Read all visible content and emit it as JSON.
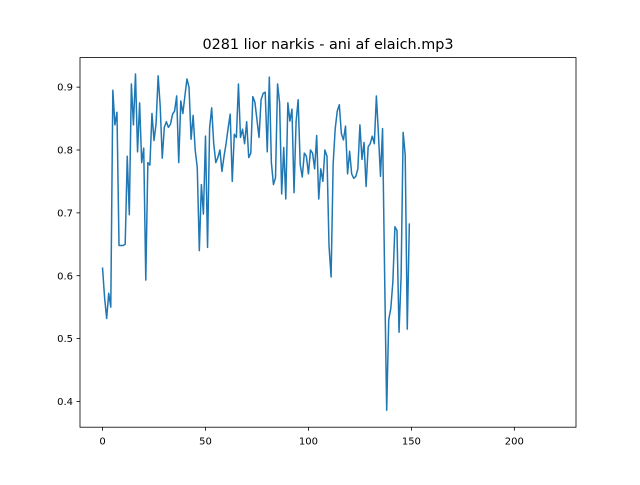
{
  "chart_data": {
    "type": "line",
    "title": "0281 lior narkis - ani af elaich.mp3",
    "xlabel": "",
    "ylabel": "",
    "xlim": [
      -10.95,
      229.95
    ],
    "ylim": [
      0.359,
      0.947
    ],
    "xticks": [
      0,
      50,
      100,
      150,
      200
    ],
    "yticks": [
      0.4,
      0.5,
      0.6,
      0.7,
      0.8,
      0.9
    ],
    "ytick_labels": [
      "0.4",
      "0.5",
      "0.6",
      "0.7",
      "0.8",
      "0.9"
    ],
    "grid": false,
    "legend": false,
    "series": [
      {
        "color": "#1f77b4",
        "x_start": 0,
        "x_step": 1,
        "values": [
          0.612,
          0.565,
          0.532,
          0.572,
          0.55,
          0.895,
          0.84,
          0.86,
          0.648,
          0.648,
          0.648,
          0.65,
          0.79,
          0.697,
          0.905,
          0.84,
          0.921,
          0.797,
          0.875,
          0.78,
          0.803,
          0.593,
          0.78,
          0.776,
          0.858,
          0.815,
          0.842,
          0.918,
          0.87,
          0.787,
          0.836,
          0.845,
          0.836,
          0.841,
          0.857,
          0.862,
          0.886,
          0.78,
          0.878,
          0.858,
          0.886,
          0.913,
          0.9,
          0.817,
          0.855,
          0.8,
          0.772,
          0.64,
          0.745,
          0.698,
          0.822,
          0.645,
          0.835,
          0.867,
          0.81,
          0.78,
          0.788,
          0.8,
          0.766,
          0.79,
          0.81,
          0.835,
          0.857,
          0.75,
          0.825,
          0.82,
          0.905,
          0.82,
          0.833,
          0.81,
          0.845,
          0.788,
          0.795,
          0.885,
          0.876,
          0.848,
          0.82,
          0.88,
          0.89,
          0.892,
          0.797,
          0.916,
          0.78,
          0.745,
          0.756,
          0.905,
          0.875,
          0.73,
          0.804,
          0.722,
          0.875,
          0.846,
          0.865,
          0.732,
          0.845,
          0.88,
          0.777,
          0.757,
          0.795,
          0.79,
          0.762,
          0.8,
          0.795,
          0.77,
          0.823,
          0.722,
          0.77,
          0.75,
          0.8,
          0.79,
          0.647,
          0.598,
          0.778,
          0.834,
          0.862,
          0.872,
          0.826,
          0.816,
          0.838,
          0.762,
          0.798,
          0.762,
          0.755,
          0.758,
          0.77,
          0.84,
          0.785,
          0.812,
          0.742,
          0.805,
          0.81,
          0.822,
          0.81,
          0.886,
          0.825,
          0.758,
          0.834,
          0.602,
          0.386,
          0.53,
          0.548,
          0.59,
          0.678,
          0.672,
          0.51,
          0.598,
          0.828,
          0.792,
          0.515,
          0.682
        ]
      }
    ]
  }
}
